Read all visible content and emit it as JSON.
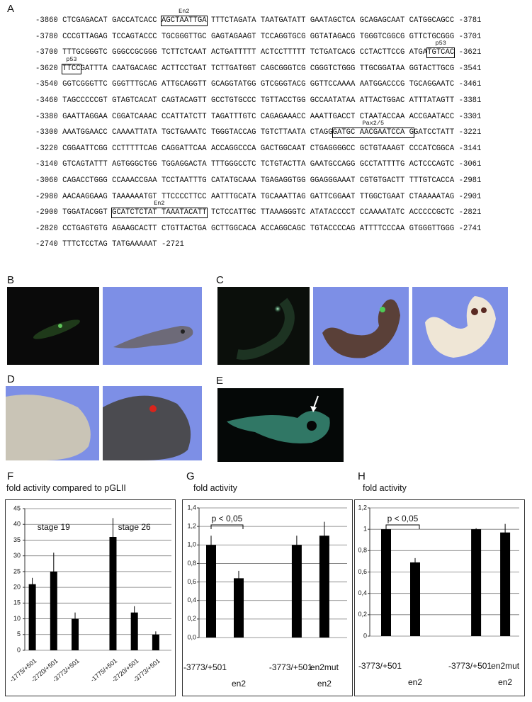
{
  "panel_labels": [
    "A",
    "B",
    "C",
    "D",
    "E",
    "F",
    "G",
    "H"
  ],
  "sequence": {
    "lines": [
      {
        "start": "-3860",
        "parts": [
          {
            "text": "CTCGAGACAT GACCATCACC "
          },
          {
            "text": "AGCTAATTGA",
            "box": true,
            "label": "En2"
          },
          {
            "text": " TTTCTAGATA TAATGATATT GAATAGCTCA GCAGAGCAAT CATGGCAGCC"
          }
        ],
        "end": "-3781"
      },
      {
        "start": "-3780",
        "parts": [
          {
            "text": "CCCGTTAGAG TCCAGTACCC TGCGGGTTGC GAGTAGAAGT TCCAGGTGCG GGTATAGACG TGGGTCGGCG GTTCTGCGGG"
          }
        ],
        "end": "-3701"
      },
      {
        "start": "-3700",
        "parts": [
          {
            "text": "TTTGCGGGTC GGGCCGCGGG TCTTCTCAAT ACTGATTTTT ACTCCTTTTT TCTGATCACG CCTACTTCCG ATGA"
          },
          {
            "text": "TGTCAC",
            "box": true,
            "label": "p53"
          }
        ],
        "end": "-3621"
      },
      {
        "start": "-3620",
        "parts": [
          {
            "text": "TTCC",
            "box": true,
            "label": "p53"
          },
          {
            "text": "GATTTA CAATGACAGC ACTTCCTGAT TCTTGATGGT CAGCGGGTCG CGGGTCTGGG TTGCGGATAA GGTACTTGCG"
          }
        ],
        "end": "-3541"
      },
      {
        "start": "-3540",
        "parts": [
          {
            "text": "GGTCGGGTTC GGGTTTGCAG ATTGCAGGTT GCAGGTATGG GTCGGGTACG GGTTCCAAAA AATGGACCCG TGCAGGAATC"
          }
        ],
        "end": "-3461"
      },
      {
        "start": "-3460",
        "parts": [
          {
            "text": "TAGCCCCCGT GTAGTCACAT CAGTACAGTT GCCTGTGCCC TGTTACCTGG GCCAATATAA ATTACTGGAC ATTTATAGTT"
          }
        ],
        "end": "-3381"
      },
      {
        "start": "-3380",
        "parts": [
          {
            "text": "GAATTAGGAA CGGATCAAAC CCATTATCTT TAGATTTGTC CAGAGAAACC AAATTGACCT CTAATACCAA ACCGAATACC"
          }
        ],
        "end": "-3301"
      },
      {
        "start": "-3300",
        "parts": [
          {
            "text": "AAATGGAACC CAAAATTATA TGCTGAAATC TGGGTACCAG TGTCTTAATA CTAGG"
          },
          {
            "text": "GATGC AACGAATCCA G",
            "box": true,
            "label": "Pax2/5"
          },
          {
            "text": "GATCCTATT"
          }
        ],
        "end": "-3221"
      },
      {
        "start": "-3220",
        "parts": [
          {
            "text": "CGGAATTCGG CCTTTTTCAG CAGGATTCAA ACCAGGCCCA GACTGGCAAT CTGAGGGGCC GCTGTAAAGT CCCATCGGCA"
          }
        ],
        "end": "-3141"
      },
      {
        "start": "-3140",
        "parts": [
          {
            "text": "GTCAGTATTT AGTGGGCTGG TGGAGGACTA TTTGGGCCTC TCTGTACTTA GAATGCCAGG GCCTATTTTG ACTCCCAGTC"
          }
        ],
        "end": "-3061"
      },
      {
        "start": "-3060",
        "parts": [
          {
            "text": "CAGACCTGGG CCAAACCGAA TCCTAATTTG CATATGCAAA TGAGAGGTGG GGAGGGAAAT CGTGTGACTT TTTGTCACCA"
          }
        ],
        "end": "-2981"
      },
      {
        "start": "-2980",
        "parts": [
          {
            "text": "AACAAGGAAG TAAAAAATGT TTCCCCTTCC AATTTGCATA TGCAAATTAG GATTCGGAAT TTGGCTGAAT CTAAAAATAG"
          }
        ],
        "end": "-2901"
      },
      {
        "start": "-2900",
        "parts": [
          {
            "text": "TGGATACGGT "
          },
          {
            "text": "GCATCTCTAT TAAATACATT",
            "box": true,
            "label": "En2"
          },
          {
            "text": " TCTCCATTGC TTAAAGGGTC ATATACCCCT CCAAAATATC ACCCCCGCTC"
          }
        ],
        "end": "-2821"
      },
      {
        "start": "-2820",
        "parts": [
          {
            "text": "CCTGAGTGTG AGAAGCACTT CTGTTACTGA GCTTGGCACA ACCAGGCAGC TGTACCCCAG ATTTTCCCAA GTGGGTTGGG"
          }
        ],
        "end": "-2741"
      },
      {
        "start": "-2740",
        "parts": [
          {
            "text": "TTTCTCCTAG TATGAAAAAT"
          }
        ],
        "end": "-2721"
      }
    ]
  },
  "chart_data": [
    {
      "type": "bar",
      "title": "fold activity compared to pGLII",
      "categories": [
        "-1775/+501",
        "-2720/+501",
        "-3773/+501",
        "-1775/+501",
        "-2720/+501",
        "-3773/+501"
      ],
      "groups": [
        "stage 19",
        "stage 26"
      ],
      "series": [
        {
          "values": [
            21,
            25,
            10,
            36,
            12,
            5
          ],
          "errors": [
            2,
            6,
            2,
            6,
            2,
            1
          ],
          "color": "#000000"
        }
      ],
      "ylim": [
        0,
        45
      ],
      "yticks": [
        0,
        5,
        10,
        15,
        20,
        25,
        30,
        35,
        40,
        45
      ],
      "grid": true
    },
    {
      "type": "bar",
      "title": "fold activity",
      "categories": [
        "-3773/+501",
        null,
        "-3773/+501",
        "en2mut"
      ],
      "categories_row2": [
        null,
        "en2",
        null,
        "en2"
      ],
      "series": [
        {
          "values": [
            1.0,
            0.64,
            1.0,
            1.1
          ],
          "errors": [
            0.1,
            0.08,
            0.1,
            0.15
          ],
          "color": "#000000"
        }
      ],
      "ylim": [
        0,
        1.4
      ],
      "yticks": [
        {
          "value": 0,
          "label": "0,0"
        },
        {
          "value": 0.2,
          "label": "0,2"
        },
        {
          "value": 0.4,
          "label": "0,4"
        },
        {
          "value": 0.6,
          "label": "0,6"
        },
        {
          "value": 0.8,
          "label": "0,8"
        },
        {
          "value": 1.0,
          "label": "1,0"
        },
        {
          "value": 1.2,
          "label": "1,2"
        },
        {
          "value": 1.4,
          "label": "1,4"
        }
      ],
      "grid": true,
      "annotation": "p < 0,05"
    },
    {
      "type": "bar",
      "title": "fold activity",
      "categories": [
        "-3773/+501",
        null,
        "-3773/+501",
        "en2mut"
      ],
      "categories_row2": [
        null,
        "en2",
        null,
        "en2"
      ],
      "series": [
        {
          "values": [
            1.0,
            0.69,
            1.0,
            0.97
          ],
          "errors": [
            0.01,
            0.04,
            0.01,
            0.08
          ],
          "color": "#000000"
        }
      ],
      "ylim": [
        0,
        1.2
      ],
      "yticks": [
        0,
        {
          "value": 0.2,
          "label": "0,2"
        },
        {
          "value": 0.4,
          "label": "0,4"
        },
        {
          "value": 0.6,
          "label": "0,6"
        },
        {
          "value": 0.8,
          "label": "0,8"
        },
        1,
        {
          "value": 1.2,
          "label": "1,2"
        }
      ],
      "grid": true,
      "annotation": "p < 0,05"
    }
  ]
}
